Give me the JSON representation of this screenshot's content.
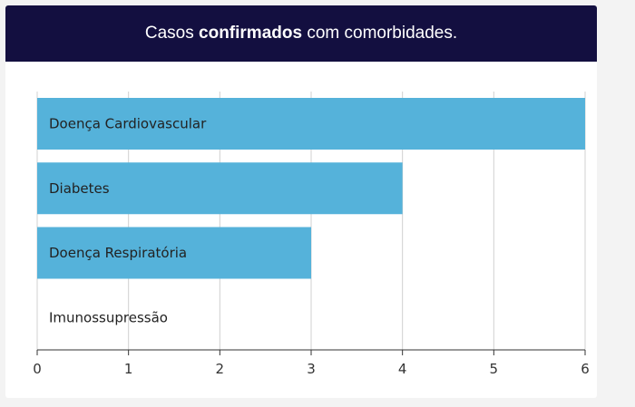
{
  "header": {
    "title_prefix": "Casos ",
    "title_bold": "confirmados",
    "title_suffix": " com comorbidades."
  },
  "chart_data": {
    "type": "bar",
    "orientation": "horizontal",
    "title": "Casos confirmados com comorbidades.",
    "categories": [
      "Doença Cardiovascular",
      "Diabetes",
      "Doença Respiratória",
      "Imunossupressão"
    ],
    "values": [
      6,
      4,
      3,
      0
    ],
    "xlim": [
      0,
      6
    ],
    "xticks": [
      0,
      1,
      2,
      3,
      4,
      5,
      6
    ],
    "grid": true,
    "bar_color": "#55b2da"
  }
}
